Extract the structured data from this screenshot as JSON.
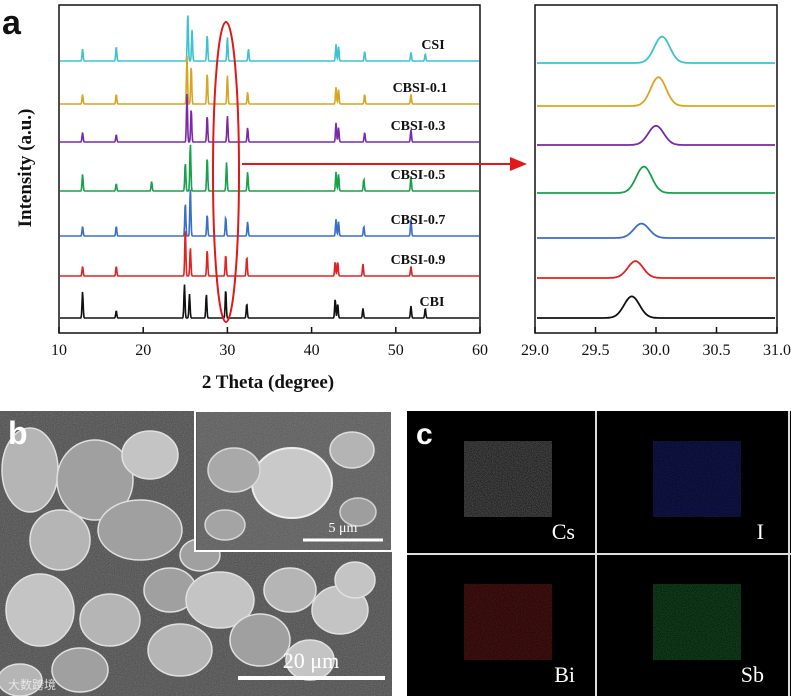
{
  "panels": {
    "a": {
      "letter": "a"
    },
    "b": {
      "letter": "b",
      "inset_scale": "5 μm",
      "main_scale": "20 μm"
    },
    "c": {
      "letter": "c",
      "maps": [
        {
          "label": "Cs",
          "color": "#c8c8c8"
        },
        {
          "label": "I",
          "color": "#2f3fe0"
        },
        {
          "label": "Bi",
          "color": "#d23030"
        },
        {
          "label": "Sb",
          "color": "#2fbf4f"
        }
      ]
    }
  },
  "watermark": "大数跨境",
  "chart_data": [
    {
      "type": "line",
      "xlabel": "2 Theta (degree)",
      "ylabel": "Intensity (a.u.)",
      "xlim": [
        10,
        60
      ],
      "xticks": [
        "10",
        "20",
        "30",
        "40",
        "50",
        "60"
      ],
      "series": [
        {
          "name": "CSI",
          "color": "#3cc3cf",
          "peaks": [
            [
              12.8,
              0.25
            ],
            [
              16.8,
              0.3
            ],
            [
              25.3,
              1.0
            ],
            [
              25.8,
              0.65
            ],
            [
              27.6,
              0.55
            ],
            [
              30.0,
              0.5
            ],
            [
              32.5,
              0.25
            ],
            [
              42.9,
              0.35
            ],
            [
              43.2,
              0.3
            ],
            [
              46.3,
              0.2
            ],
            [
              51.8,
              0.18
            ],
            [
              53.5,
              0.15
            ]
          ]
        },
        {
          "name": "CBSI-0.1",
          "color": "#d9a520",
          "peaks": [
            [
              12.8,
              0.2
            ],
            [
              16.8,
              0.2
            ],
            [
              25.2,
              1.0
            ],
            [
              25.7,
              0.8
            ],
            [
              27.6,
              0.65
            ],
            [
              30.0,
              0.6
            ],
            [
              32.4,
              0.25
            ],
            [
              42.9,
              0.35
            ],
            [
              43.2,
              0.3
            ],
            [
              46.3,
              0.2
            ],
            [
              51.8,
              0.2
            ]
          ]
        },
        {
          "name": "CBSI-0.3",
          "color": "#7a2aa8",
          "peaks": [
            [
              12.8,
              0.2
            ],
            [
              16.8,
              0.15
            ],
            [
              25.2,
              1.0
            ],
            [
              25.7,
              0.7
            ],
            [
              27.6,
              0.55
            ],
            [
              30.0,
              0.55
            ],
            [
              32.4,
              0.3
            ],
            [
              42.9,
              0.4
            ],
            [
              43.2,
              0.3
            ],
            [
              46.3,
              0.2
            ],
            [
              51.8,
              0.25
            ]
          ]
        },
        {
          "name": "CBSI-0.5",
          "color": "#17a24a",
          "peaks": [
            [
              12.8,
              0.35
            ],
            [
              16.8,
              0.15
            ],
            [
              21.0,
              0.2
            ],
            [
              25.0,
              0.6
            ],
            [
              25.6,
              1.0
            ],
            [
              27.6,
              0.7
            ],
            [
              29.9,
              0.6
            ],
            [
              32.4,
              0.4
            ],
            [
              42.9,
              0.4
            ],
            [
              43.2,
              0.35
            ],
            [
              46.2,
              0.25
            ],
            [
              51.8,
              0.3
            ]
          ]
        },
        {
          "name": "CBSI-0.7",
          "color": "#3a6fc9",
          "peaks": [
            [
              12.8,
              0.2
            ],
            [
              16.8,
              0.2
            ],
            [
              25.0,
              0.7
            ],
            [
              25.6,
              1.0
            ],
            [
              27.6,
              0.45
            ],
            [
              29.8,
              0.4
            ],
            [
              32.4,
              0.3
            ],
            [
              42.9,
              0.35
            ],
            [
              43.2,
              0.3
            ],
            [
              46.2,
              0.2
            ],
            [
              51.8,
              0.35
            ]
          ]
        },
        {
          "name": "CBSI-0.9",
          "color": "#e02222",
          "peaks": [
            [
              12.8,
              0.2
            ],
            [
              16.8,
              0.2
            ],
            [
              25.0,
              1.0
            ],
            [
              25.6,
              0.6
            ],
            [
              27.6,
              0.55
            ],
            [
              29.8,
              0.45
            ],
            [
              32.3,
              0.4
            ],
            [
              42.8,
              0.3
            ],
            [
              43.1,
              0.3
            ],
            [
              46.1,
              0.25
            ],
            [
              51.8,
              0.2
            ]
          ]
        },
        {
          "name": "CBI",
          "color": "#111111",
          "peaks": [
            [
              12.8,
              0.55
            ],
            [
              16.8,
              0.15
            ],
            [
              24.9,
              0.7
            ],
            [
              25.5,
              0.5
            ],
            [
              27.5,
              0.5
            ],
            [
              29.8,
              0.6
            ],
            [
              32.3,
              0.3
            ],
            [
              42.8,
              0.4
            ],
            [
              43.1,
              0.3
            ],
            [
              46.1,
              0.2
            ],
            [
              51.8,
              0.25
            ],
            [
              53.5,
              0.2
            ]
          ]
        }
      ]
    },
    {
      "type": "line",
      "xlim": [
        29.0,
        31.0
      ],
      "xticks": [
        "29.0",
        "29.5",
        "30.0",
        "30.5",
        "31.0"
      ],
      "series": [
        {
          "name": "CSI",
          "color": "#3cc3cf",
          "center": 30.05,
          "height": 0.55
        },
        {
          "name": "CBSI-0.1",
          "color": "#d9a520",
          "center": 30.02,
          "height": 0.6
        },
        {
          "name": "CBSI-0.3",
          "color": "#7a2aa8",
          "center": 30.0,
          "height": 0.4
        },
        {
          "name": "CBSI-0.5",
          "color": "#17a24a",
          "center": 29.9,
          "height": 0.55
        },
        {
          "name": "CBSI-0.7",
          "color": "#3a6fc9",
          "center": 29.88,
          "height": 0.3
        },
        {
          "name": "CBSI-0.9",
          "color": "#e02222",
          "center": 29.83,
          "height": 0.35
        },
        {
          "name": "CBI",
          "color": "#111111",
          "center": 29.8,
          "height": 0.45
        }
      ]
    }
  ]
}
